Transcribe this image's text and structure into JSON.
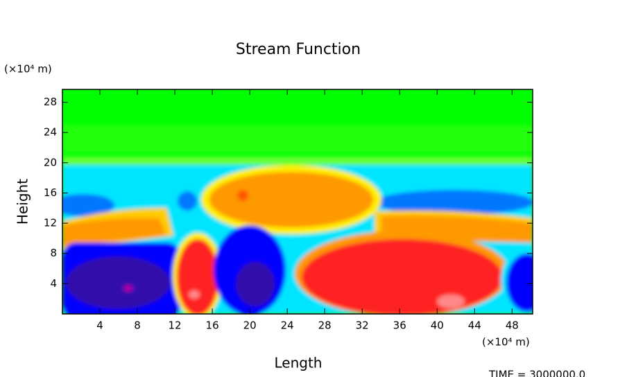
{
  "chart_data": {
    "type": "contour",
    "title": "Stream Function",
    "xlabel": "Length",
    "ylabel": "Height",
    "x_unit": "(×10⁴ m)",
    "y_unit": "(×10⁴ m)",
    "annotation": "TIME = 3000000.0",
    "xlim": [
      0,
      50.2
    ],
    "ylim": [
      0,
      29.7
    ],
    "xticks": [
      4,
      8,
      12,
      16,
      20,
      24,
      28,
      32,
      36,
      40,
      44,
      48
    ],
    "yticks": [
      4,
      8,
      12,
      16,
      20,
      24,
      28
    ]
  }
}
